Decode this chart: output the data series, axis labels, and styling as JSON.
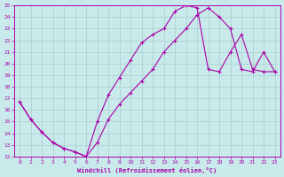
{
  "xlabel": "Windchill (Refroidissement éolien,°C)",
  "bg_color": "#c8eaea",
  "line_color": "#aa00aa",
  "grid_color": "#aacccc",
  "xlim": [
    -0.5,
    23.5
  ],
  "ylim": [
    12,
    25
  ],
  "xticks": [
    0,
    1,
    2,
    3,
    4,
    5,
    6,
    7,
    8,
    9,
    10,
    11,
    12,
    13,
    14,
    15,
    16,
    17,
    18,
    19,
    20,
    21,
    22,
    23
  ],
  "yticks": [
    12,
    13,
    14,
    15,
    16,
    17,
    18,
    19,
    20,
    21,
    22,
    23,
    24,
    25
  ],
  "line1_x": [
    0,
    1,
    2,
    3,
    4,
    5,
    6,
    7,
    8,
    9,
    10,
    11,
    12,
    13,
    14,
    15,
    16,
    17,
    18,
    19,
    20,
    21,
    22,
    23
  ],
  "line1_y": [
    16.7,
    15.2,
    14.1,
    13.2,
    12.7,
    12.4,
    12.0,
    15.0,
    17.3,
    18.8,
    20.3,
    21.8,
    22.5,
    23.0,
    24.5,
    25.0,
    24.8,
    19.5,
    19.3,
    21.0,
    22.5,
    19.5,
    19.3,
    19.3
  ],
  "line2_x": [
    0,
    1,
    2,
    3,
    4,
    5,
    6,
    7,
    8,
    9,
    10,
    11,
    12,
    13,
    14,
    15,
    16,
    17,
    18,
    19,
    20,
    21,
    22,
    23
  ],
  "line2_y": [
    16.7,
    15.2,
    14.1,
    13.2,
    12.7,
    12.4,
    12.0,
    13.2,
    15.2,
    16.5,
    17.5,
    18.5,
    19.5,
    21.0,
    22.0,
    23.0,
    24.2,
    24.8,
    24.0,
    23.0,
    19.5,
    19.3,
    21.0,
    19.3
  ]
}
